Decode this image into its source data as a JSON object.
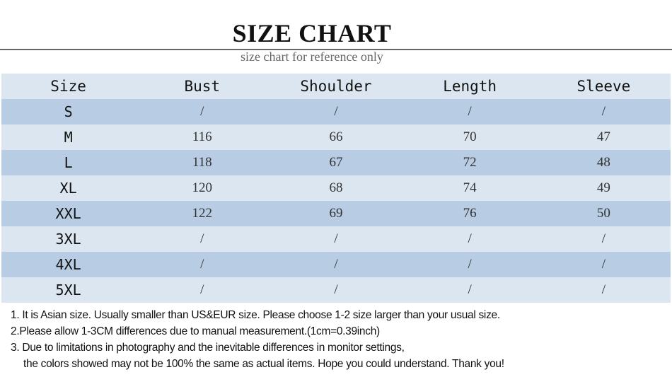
{
  "header": {
    "title": "SIZE CHART",
    "subtitle": "size chart for reference only"
  },
  "table": {
    "columns": [
      "Size",
      "Bust",
      "Shoulder",
      "Length",
      "Sleeve"
    ],
    "rows": [
      [
        "S",
        "/",
        "/",
        "/",
        "/"
      ],
      [
        "M",
        "116",
        "66",
        "70",
        "47"
      ],
      [
        "L",
        "118",
        "67",
        "72",
        "48"
      ],
      [
        "XL",
        "120",
        "68",
        "74",
        "49"
      ],
      [
        "XXL",
        "122",
        "69",
        "76",
        "50"
      ],
      [
        "3XL",
        "/",
        "/",
        "/",
        "/"
      ],
      [
        "4XL",
        "/",
        "/",
        "/",
        "/"
      ],
      [
        "5XL",
        "/",
        "/",
        "/",
        "/"
      ]
    ]
  },
  "colors": {
    "row_light": "#dce6f1",
    "row_dark": "#b8cce4"
  },
  "notes": [
    "1. It is Asian size.  Usually smaller than US&EUR size. Please choose 1-2 size larger than your usual size.",
    "2.Please allow 1-3CM differences due to manual measurement.(1cm=0.39inch)",
    "3. Due to limitations in photography and the inevitable differences in monitor settings,",
    "the colors showed may not be 100% the same as actual items. Hope you could understand. Thank you!"
  ]
}
